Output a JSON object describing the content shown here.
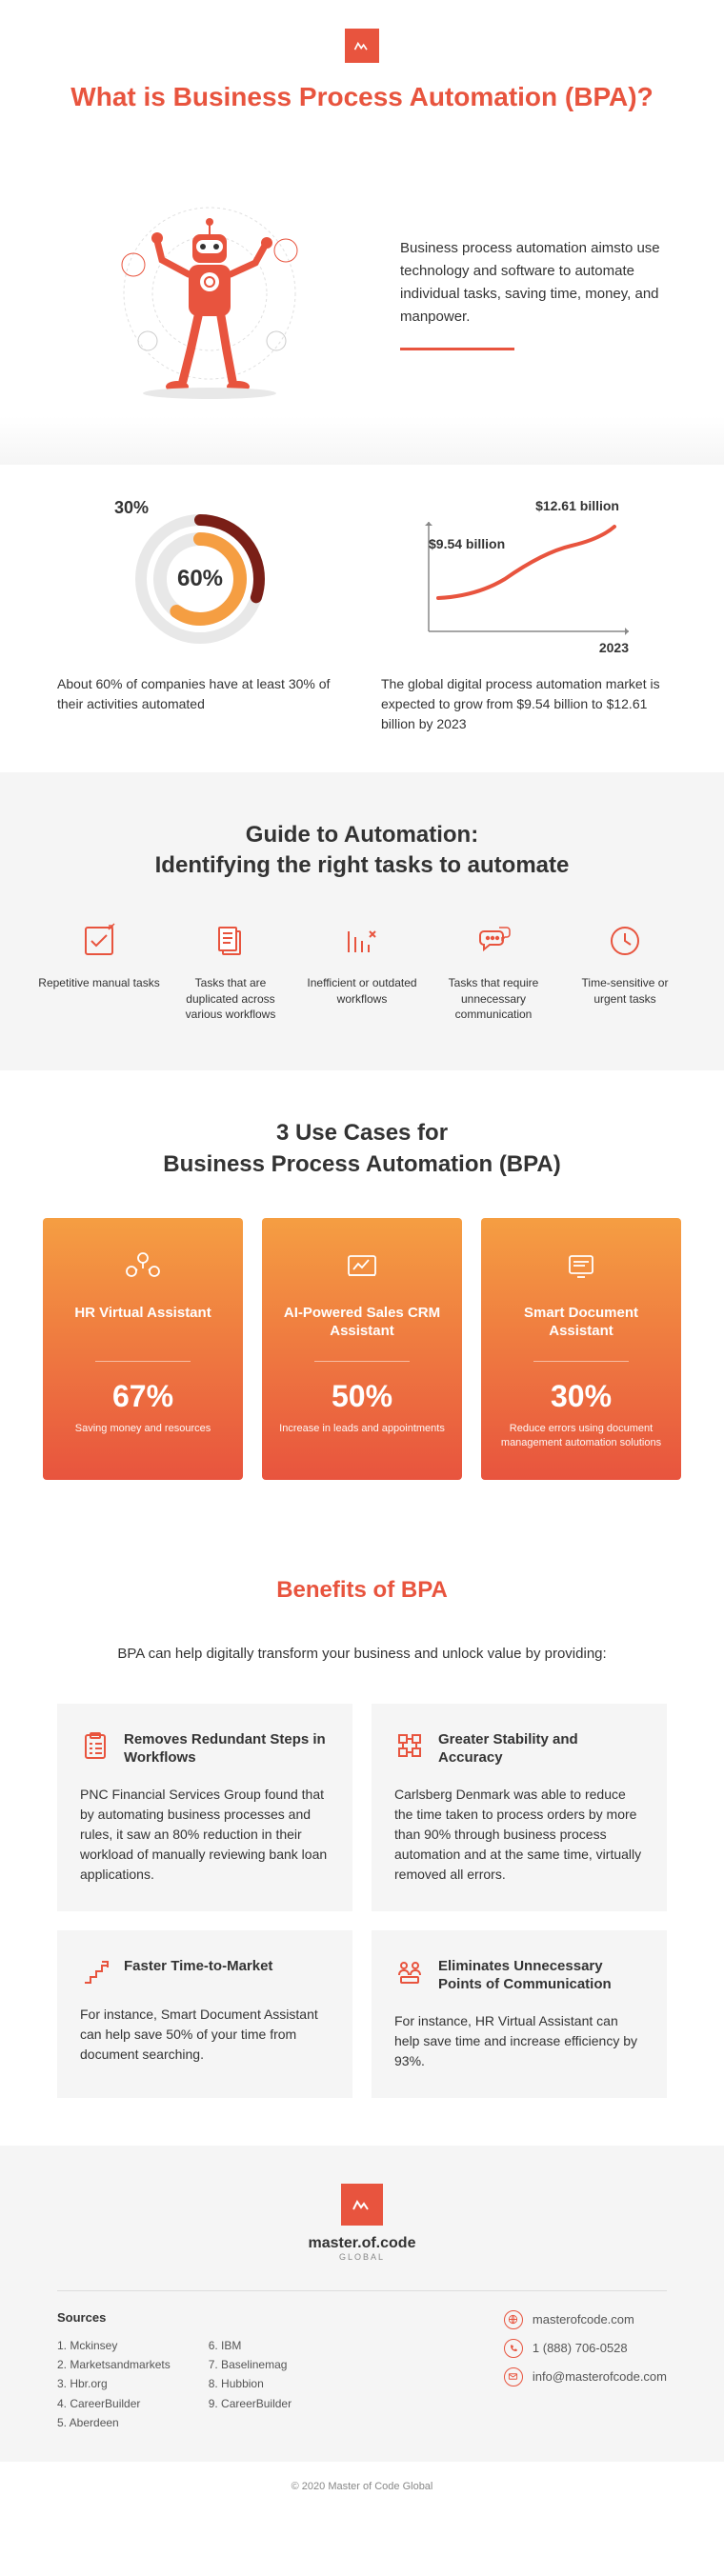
{
  "colors": {
    "accent": "#e8543e",
    "accentLight": "#f59e42",
    "grayBg": "#f5f5f5",
    "text": "#333"
  },
  "title": "What is Business Process Automation (BPA)?",
  "hero": {
    "text": "Business process automation aimsto use technology and software to automate individual tasks, saving time, money, and manpower."
  },
  "stats": {
    "donut": {
      "outer_label": "30%",
      "inner_label": "60%",
      "outer_value": 30,
      "inner_value": 60,
      "outer_color": "#7a1f17",
      "inner_color": "#f59e42",
      "track_color": "#e8e8e8",
      "caption": "About 60% of companies have at least 30% of their activities automated"
    },
    "line": {
      "start_label": "$9.54 billion",
      "end_label": "$12.61 billion",
      "year": "2023",
      "line_color": "#e8543e",
      "axis_color": "#888",
      "caption": "The global digital process automation market is expected to grow from $9.54 billion to $12.61 billion by 2023"
    }
  },
  "guide": {
    "title": "Guide to Automation:\nIdentifying the right tasks to automate",
    "items": [
      {
        "label": "Repetitive manual tasks"
      },
      {
        "label": "Tasks that are duplicated across various workflows"
      },
      {
        "label": "Inefficient or outdated workflows"
      },
      {
        "label": "Tasks that require unnecessary communication"
      },
      {
        "label": "Time-sensitive or urgent tasks"
      }
    ]
  },
  "usecases": {
    "title": "3 Use Cases for\nBusiness Process Automation (BPA)",
    "cards": [
      {
        "title": "HR Virtual Assistant",
        "stat": "67%",
        "desc": "Saving money and resources"
      },
      {
        "title": "AI-Powered Sales CRM Assistant",
        "stat": "50%",
        "desc": "Increase in leads and appointments"
      },
      {
        "title": "Smart Document Assistant",
        "stat": "30%",
        "desc": "Reduce errors using document management automation solutions"
      }
    ]
  },
  "benefits": {
    "title": "Benefits of BPA",
    "sub": "BPA can help digitally transform your business and unlock value by providing:",
    "items": [
      {
        "title": "Removes Redundant Steps in Workflows",
        "text": "PNC Financial Services Group found that by automating business processes and rules, it saw an 80% reduction in their workload of manually reviewing bank loan applications."
      },
      {
        "title": "Greater Stability and Accuracy",
        "text": "Carlsberg Denmark was able to reduce the time taken to process orders by more than 90% through business process automation and at the same time, virtually removed all errors."
      },
      {
        "title": "Faster Time-to-Market",
        "text": "For instance, Smart Document Assistant can help save 50% of your time from document searching."
      },
      {
        "title": "Eliminates Unnecessary Points of Communication",
        "text": "For instance, HR Virtual Assistant can help save time and increase efficiency by 93%."
      }
    ]
  },
  "footer": {
    "brand": "master.of.code",
    "brand_sub": "GLOBAL",
    "sources_title": "Sources",
    "sources": [
      [
        "1. Mckinsey",
        "2. Marketsandmarkets",
        "3. Hbr.org",
        "4. CareerBuilder",
        "5. Aberdeen"
      ],
      [
        "6. IBM",
        "7. Baselinemag",
        "8. Hubbion",
        "9. CareerBuilder"
      ]
    ],
    "contacts": {
      "web": "masterofcode.com",
      "phone": "1 (888) 706-0528",
      "email": "info@masterofcode.com"
    },
    "copyright": "© 2020 Master of Code Global"
  }
}
